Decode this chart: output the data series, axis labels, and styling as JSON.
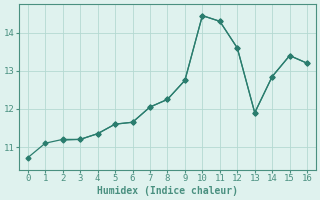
{
  "line1_x": [
    0,
    1,
    2,
    3,
    4,
    5,
    6,
    7,
    8,
    9,
    10,
    11,
    12,
    13,
    14,
    15,
    16
  ],
  "line1_y": [
    10.72,
    11.1,
    11.2,
    11.2,
    11.35,
    11.6,
    11.65,
    12.05,
    12.25,
    12.75,
    14.45,
    14.3,
    13.6,
    11.9,
    12.85,
    13.4,
    13.2
  ],
  "line2_x": [
    2,
    3,
    4,
    5,
    6,
    7,
    8,
    9,
    10,
    11,
    12,
    13,
    14,
    15,
    16
  ],
  "line2_y": [
    11.18,
    11.2,
    11.35,
    11.6,
    11.65,
    12.05,
    12.25,
    12.75,
    14.45,
    14.3,
    13.6,
    11.9,
    12.85,
    13.4,
    13.2
  ],
  "xlabel": "Humidex (Indice chaleur)",
  "xlim": [
    -0.5,
    16.5
  ],
  "ylim": [
    10.4,
    14.75
  ],
  "xticks": [
    0,
    1,
    2,
    3,
    4,
    5,
    6,
    7,
    8,
    9,
    10,
    11,
    12,
    13,
    14,
    15,
    16
  ],
  "yticks": [
    11,
    12,
    13,
    14
  ],
  "line_color": "#2a7d6e",
  "bg_color": "#dff2ee",
  "grid_color": "#b5d9d2",
  "spine_color": "#4a9080"
}
